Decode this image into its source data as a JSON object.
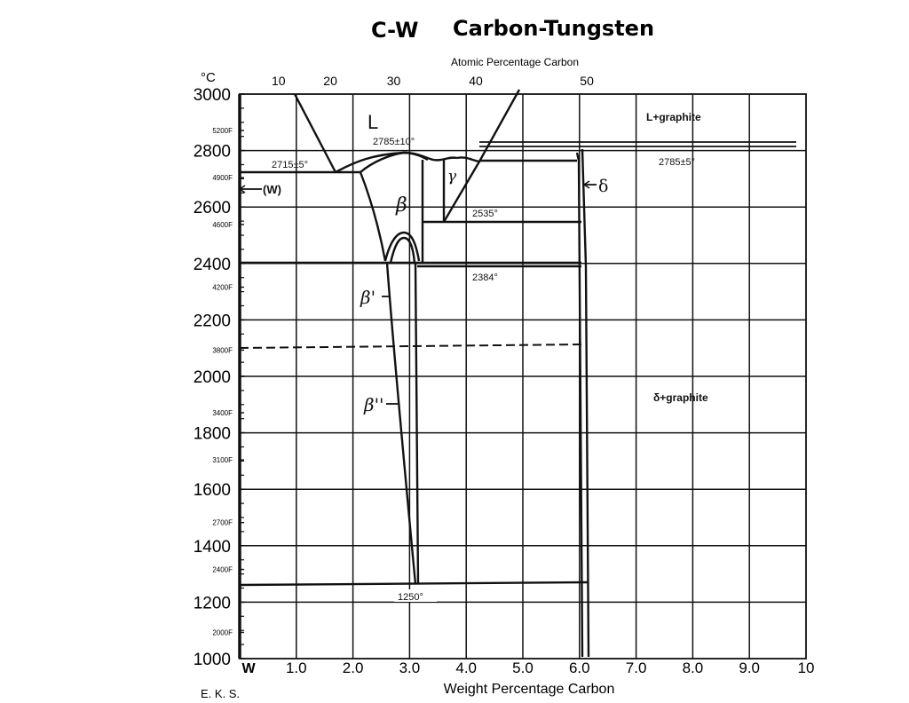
{
  "chart_data": {
    "type": "phase-diagram",
    "title": "C-W    Carbon-Tungsten",
    "title_system": "C-W",
    "title_name": "Carbon-Tungsten",
    "xlabel": "Weight Percentage Carbon",
    "x2label": "Atomic Percentage Carbon",
    "ylabel": "°C",
    "xlim": [
      0,
      10
    ],
    "ylim": [
      1000,
      3000
    ],
    "x_ticks": [
      "W",
      "1.0",
      "2.0",
      "3.0",
      "4.0",
      "5.0",
      "6.0",
      "7.0",
      "8.0",
      "9.0",
      "10"
    ],
    "x_tick_values": [
      0,
      1,
      2,
      3,
      4,
      5,
      6,
      7,
      8,
      9,
      10
    ],
    "x2_ticks": [
      "10",
      "20",
      "30",
      "40",
      "50"
    ],
    "x2_tick_wt": [
      0.71,
      1.6,
      2.72,
      4.17,
      6.13
    ],
    "y_ticks": [
      "1000",
      "1200",
      "1400",
      "1600",
      "1800",
      "2000",
      "2200",
      "2400",
      "2600",
      "2800",
      "3000"
    ],
    "y_tick_values": [
      1000,
      1200,
      1400,
      1600,
      1800,
      2000,
      2200,
      2400,
      2600,
      2800,
      3000
    ],
    "y_f_ticks": [
      {
        "label": "5200F",
        "c": 2871
      },
      {
        "label": "4900F",
        "c": 2704
      },
      {
        "label": "4600F",
        "c": 2538
      },
      {
        "label": "4200F",
        "c": 2316
      },
      {
        "label": "3800F",
        "c": 2093
      },
      {
        "label": "3400F",
        "c": 1871
      },
      {
        "label": "3100F",
        "c": 1704
      },
      {
        "label": "2700F",
        "c": 1482
      },
      {
        "label": "2400F",
        "c": 1316
      },
      {
        "label": "2000F",
        "c": 1093
      }
    ],
    "grid": true,
    "annotations": [
      {
        "text": "L",
        "x": 2.4,
        "y": 2900
      },
      {
        "text": "L+graphite",
        "x": 7.9,
        "y": 2885
      },
      {
        "text": "2785±10°",
        "x": 2.9,
        "y": 2805
      },
      {
        "text": "2715±5°",
        "x": 1.05,
        "y": 2735
      },
      {
        "text": "2785±5°",
        "x": 7.9,
        "y": 2760
      },
      {
        "text": "(W)",
        "x": 0.45,
        "y": 2660
      },
      {
        "text": "β",
        "x": 2.85,
        "y": 2600
      },
      {
        "text": "γ",
        "x": 3.7,
        "y": 2720
      },
      {
        "text": "δ",
        "x": 6.45,
        "y": 2670
      },
      {
        "text": "2535°",
        "x": 4.4,
        "y": 2575
      },
      {
        "text": "2384°",
        "x": 4.4,
        "y": 2350
      },
      {
        "text": "β'",
        "x": 2.35,
        "y": 2260
      },
      {
        "text": "β''",
        "x": 2.4,
        "y": 1910
      },
      {
        "text": "δ+graphite",
        "x": 8.05,
        "y": 2075
      },
      {
        "text": "1250°",
        "x": 3.1,
        "y": 1218
      },
      {
        "text": "E. K. S.",
        "x": -0.6,
        "y": 940
      }
    ],
    "isotherms_C": [
      2785,
      2715,
      2535,
      2384,
      1250
    ],
    "phases": [
      "L",
      "(W)",
      "β",
      "β'",
      "β''",
      "γ",
      "δ",
      "L+graphite",
      "δ+graphite"
    ]
  },
  "author": "E. K. S."
}
